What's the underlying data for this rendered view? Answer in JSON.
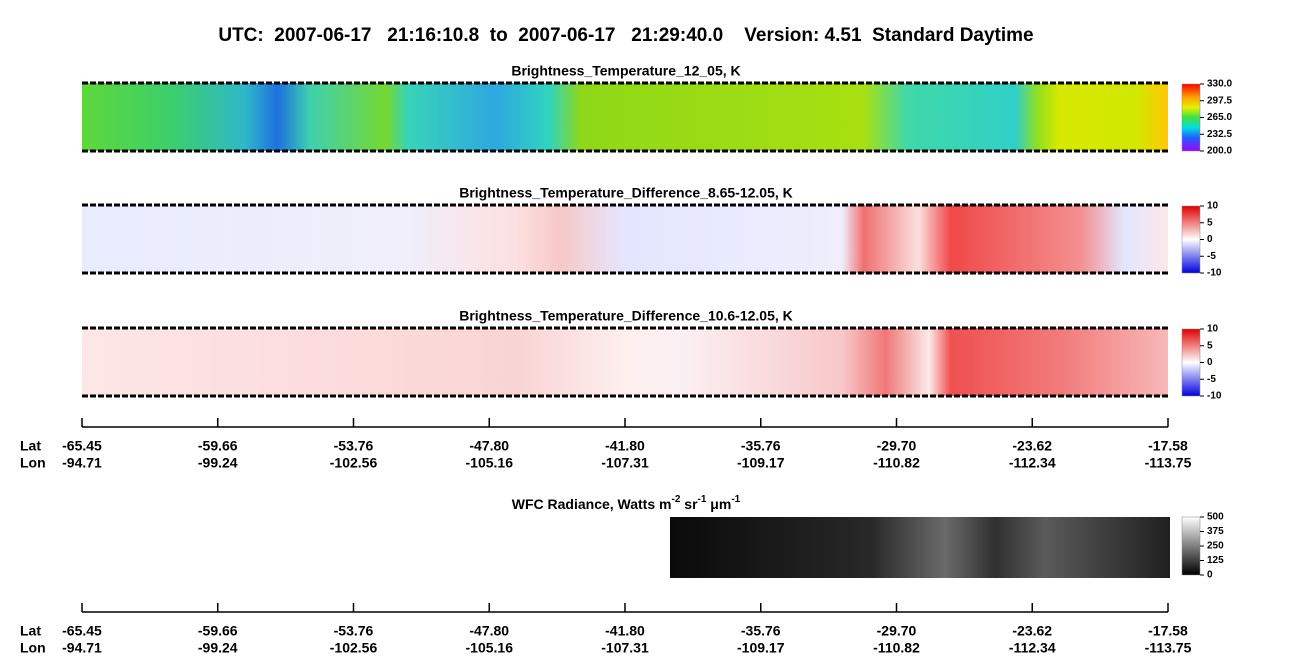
{
  "title": "UTC:  2007-06-17   21:16:10.8  to  2007-06-17   21:29:40.0    Version: 4.51  Standard Daytime",
  "panels": [
    {
      "title": "Brightness_Temperature_12_05, K",
      "colorbar": [
        "330.0",
        "297.5",
        "265.0",
        "232.5",
        "200.0"
      ]
    },
    {
      "title": "Brightness_Temperature_Difference_8.65-12.05, K",
      "colorbar": [
        "10",
        "5",
        "0",
        "-5",
        "-10"
      ]
    },
    {
      "title": "Brightness_Temperature_Difference_10.6-12.05, K",
      "colorbar": [
        "10",
        "5",
        "0",
        "-5",
        "-10"
      ]
    }
  ],
  "wfc": {
    "title_parts": [
      {
        "text": "WFC Radiance, Watts m"
      },
      {
        "text": "-2",
        "sup": true
      },
      {
        "text": " sr"
      },
      {
        "text": "-1",
        "sup": true
      },
      {
        "text": " μm"
      },
      {
        "text": "-1",
        "sup": true
      }
    ],
    "colorbar": [
      "500",
      "375",
      "250",
      "125",
      "0"
    ]
  },
  "axes": [
    {
      "lat_label": "Lat",
      "lon_label": "Lon",
      "lat": [
        "-65.45",
        "-59.66",
        "-53.76",
        "-47.80",
        "-41.80",
        "-35.76",
        "-29.70",
        "-23.62",
        "-17.58"
      ],
      "lon": [
        "-94.71",
        "-99.24",
        "-102.56",
        "-105.16",
        "-107.31",
        "-109.17",
        "-110.82",
        "-112.34",
        "-113.75"
      ]
    },
    {
      "lat_label": "Lat",
      "lon_label": "Lon",
      "lat": [
        "-65.45",
        "-59.66",
        "-53.76",
        "-47.80",
        "-41.80",
        "-35.76",
        "-29.70",
        "-23.62",
        "-17.58"
      ],
      "lon": [
        "-94.71",
        "-99.24",
        "-102.56",
        "-105.16",
        "-107.31",
        "-109.17",
        "-110.82",
        "-112.34",
        "-113.75"
      ]
    }
  ]
}
